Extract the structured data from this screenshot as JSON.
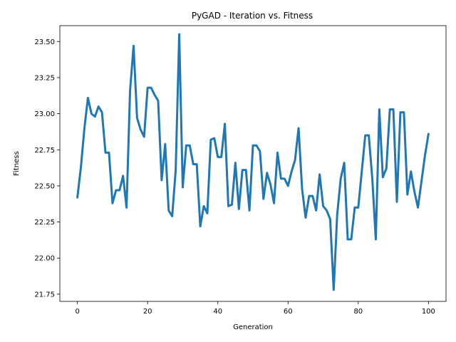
{
  "chart_data": {
    "type": "line",
    "title": "PyGAD - Iteration vs. Fitness",
    "xlabel": "Generation",
    "ylabel": "Fitness",
    "xlim": [
      -5,
      105
    ],
    "ylim": [
      21.7,
      23.61
    ],
    "grid": false,
    "line_color": "#1f77b4",
    "xticks": [
      0,
      20,
      40,
      60,
      80,
      100
    ],
    "xtick_labels": [
      "0",
      "20",
      "40",
      "60",
      "80",
      "100"
    ],
    "yticks": [
      21.75,
      22.0,
      22.25,
      22.5,
      22.75,
      23.0,
      23.25,
      23.5
    ],
    "ytick_labels": [
      "21.75",
      "22.00",
      "22.25",
      "22.50",
      "22.75",
      "23.00",
      "23.25",
      "23.50"
    ],
    "series": [
      {
        "x": [
          0,
          1,
          2,
          3,
          4,
          5,
          6,
          7,
          8,
          9,
          10,
          11,
          12,
          13,
          14,
          15,
          16,
          17,
          18,
          19,
          20,
          21,
          22,
          23,
          24,
          25,
          26,
          27,
          28,
          29,
          30,
          31,
          32,
          33,
          34,
          35,
          36,
          37,
          38,
          39,
          40,
          41,
          42,
          43,
          44,
          45,
          46,
          47,
          48,
          49,
          50,
          51,
          52,
          53,
          54,
          55,
          56,
          57,
          58,
          59,
          60,
          61,
          62,
          63,
          64,
          65,
          66,
          67,
          68,
          69,
          70,
          71,
          72,
          73,
          74,
          75,
          76,
          77,
          78,
          79,
          80,
          81,
          82,
          83,
          84,
          85,
          86,
          87,
          88,
          89,
          90,
          91,
          92,
          93,
          94,
          95,
          96,
          97,
          98,
          99,
          100
        ],
        "values": [
          22.42,
          22.63,
          22.9,
          23.11,
          23.0,
          22.98,
          23.05,
          23.01,
          22.73,
          22.73,
          22.38,
          22.47,
          22.47,
          22.57,
          22.35,
          23.16,
          23.47,
          22.97,
          22.89,
          22.84,
          23.18,
          23.18,
          23.13,
          23.09,
          22.54,
          22.79,
          22.33,
          22.29,
          22.61,
          23.55,
          22.49,
          22.78,
          22.78,
          22.65,
          22.65,
          22.22,
          22.36,
          22.31,
          22.82,
          22.83,
          22.7,
          22.7,
          22.93,
          22.36,
          22.37,
          22.66,
          22.34,
          22.61,
          22.61,
          22.33,
          22.78,
          22.78,
          22.74,
          22.41,
          22.59,
          22.51,
          22.38,
          22.73,
          22.55,
          22.55,
          22.5,
          22.6,
          22.68,
          22.9,
          22.48,
          22.28,
          22.43,
          22.43,
          22.33,
          22.58,
          22.36,
          22.33,
          22.27,
          21.78,
          22.3,
          22.55,
          22.66,
          22.13,
          22.13,
          22.35,
          22.35,
          22.6,
          22.85,
          22.85,
          22.55,
          22.13,
          23.03,
          22.56,
          22.62,
          23.03,
          23.03,
          22.39,
          23.01,
          23.01,
          22.44,
          22.6,
          22.46,
          22.35,
          22.53,
          22.71,
          22.86
        ]
      }
    ]
  }
}
